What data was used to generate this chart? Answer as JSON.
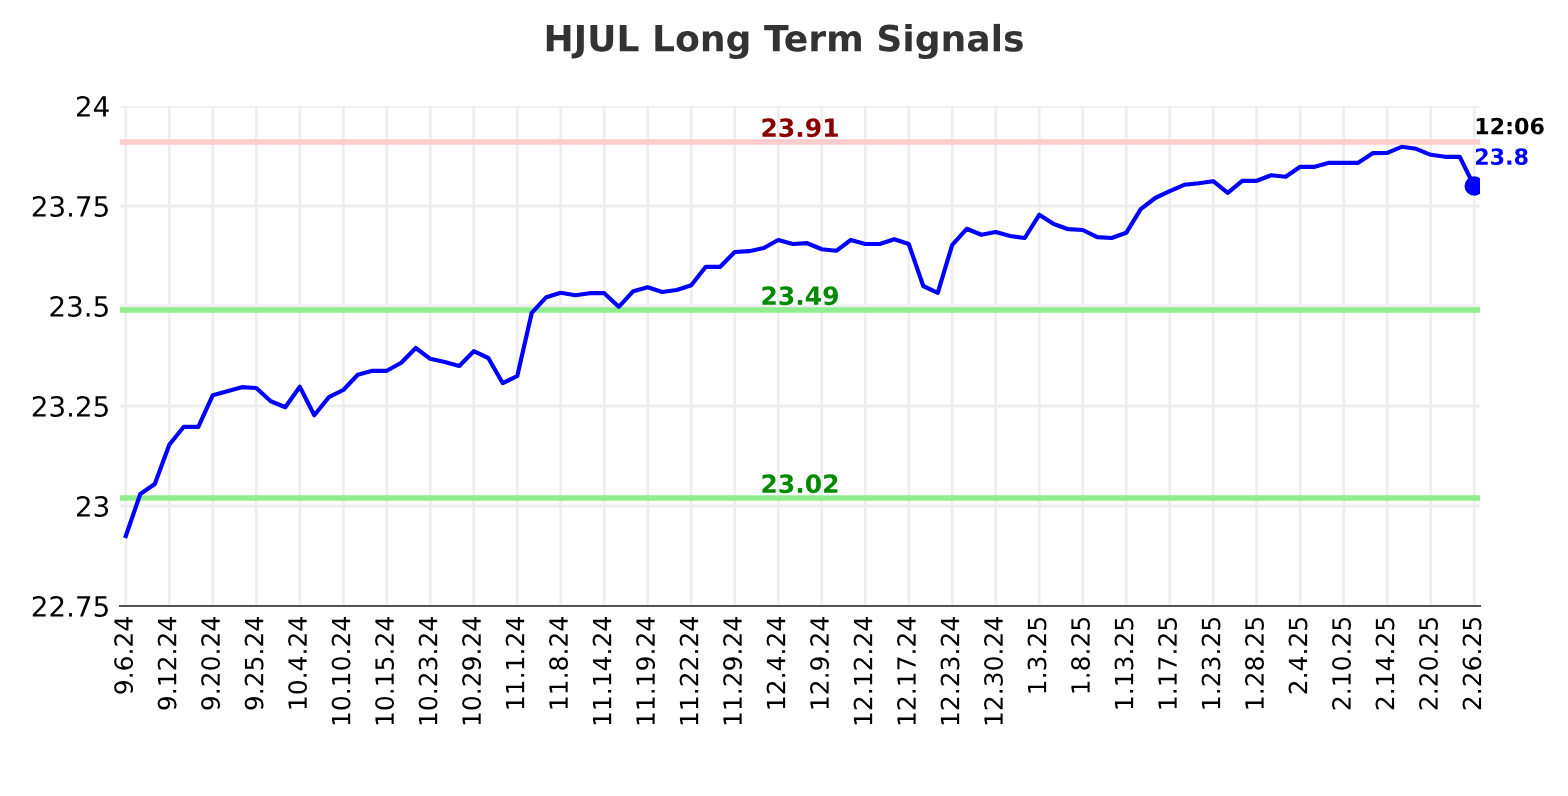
{
  "chart_data": {
    "type": "line",
    "title": "HJUL Long Term Signals",
    "categories": [
      "9.6.24",
      null,
      null,
      "9.12.24",
      null,
      null,
      "9.20.24",
      null,
      null,
      "9.25.24",
      null,
      null,
      "10.4.24",
      null,
      null,
      "10.10.24",
      null,
      null,
      "10.15.24",
      null,
      null,
      "10.23.24",
      null,
      null,
      "10.29.24",
      null,
      null,
      "11.1.24",
      null,
      null,
      "11.8.24",
      null,
      null,
      "11.14.24",
      null,
      null,
      "11.19.24",
      null,
      null,
      "11.22.24",
      null,
      null,
      "11.29.24",
      null,
      null,
      "12.4.24",
      null,
      null,
      "12.9.24",
      null,
      null,
      "12.12.24",
      null,
      null,
      "12.17.24",
      null,
      null,
      "12.23.24",
      null,
      null,
      "12.30.24",
      null,
      null,
      "1.3.25",
      null,
      null,
      "1.8.25",
      null,
      null,
      "1.13.25",
      null,
      null,
      "1.17.25",
      null,
      null,
      "1.23.25",
      null,
      null,
      "1.28.25",
      null,
      null,
      "2.4.25",
      null,
      null,
      "2.10.25",
      null,
      null,
      "2.14.25",
      null,
      null,
      "2.20.25",
      null,
      null,
      "2.26.25"
    ],
    "series": [
      {
        "color": "#0000ff",
        "values": [
          22.925,
          23.03,
          23.055,
          23.153,
          23.198,
          23.198,
          23.277,
          23.287,
          23.297,
          23.295,
          23.262,
          23.247,
          23.298,
          23.227,
          23.272,
          23.29,
          23.328,
          23.338,
          23.338,
          23.358,
          23.395,
          23.368,
          23.36,
          23.35,
          23.387,
          23.37,
          23.307,
          23.325,
          23.483,
          23.522,
          23.533,
          23.527,
          23.532,
          23.532,
          23.498,
          23.537,
          23.547,
          23.535,
          23.54,
          23.552,
          23.598,
          23.598,
          23.635,
          23.637,
          23.645,
          23.665,
          23.655,
          23.657,
          23.642,
          23.638,
          23.665,
          23.655,
          23.655,
          23.667,
          23.655,
          23.55,
          23.533,
          23.653,
          23.693,
          23.678,
          23.685,
          23.675,
          23.67,
          23.728,
          23.705,
          23.692,
          23.69,
          23.672,
          23.67,
          23.683,
          23.742,
          23.77,
          23.787,
          23.803,
          23.807,
          23.812,
          23.783,
          23.813,
          23.813,
          23.827,
          23.823,
          23.848,
          23.848,
          23.858,
          23.858,
          23.858,
          23.882,
          23.883,
          23.898,
          23.893,
          23.878,
          23.873,
          23.873,
          23.8
        ],
        "value_labels": [
          null,
          null,
          null,
          null,
          null,
          null,
          null,
          null,
          null,
          null,
          null,
          null,
          null,
          null,
          null,
          null,
          null,
          null,
          null,
          null,
          null,
          null,
          null,
          null,
          null,
          null,
          null,
          null,
          null,
          null,
          null,
          null,
          null,
          null,
          null,
          null,
          null,
          null,
          null,
          null,
          null,
          null,
          null,
          null,
          null,
          null,
          null,
          null,
          null,
          null,
          null,
          null,
          null,
          null,
          null,
          null,
          null,
          null,
          null,
          null,
          null,
          null,
          null,
          null,
          null,
          null,
          null,
          null,
          null,
          null,
          null,
          null,
          null,
          null,
          null,
          null,
          null,
          null,
          null,
          null,
          null,
          null,
          null,
          null,
          null,
          null,
          null,
          null,
          null,
          null,
          null,
          null,
          null,
          "23.8"
        ]
      }
    ],
    "annotations": [
      {
        "text": "12:06",
        "x": "2.26.25",
        "y": 23.8
      }
    ],
    "ref_lines": [
      {
        "axis": "y",
        "value": 23.91,
        "label": "23.91",
        "color": "#ffcccc"
      },
      {
        "axis": "y",
        "value": 23.49,
        "label": "23.49",
        "color": "#90ee90"
      },
      {
        "axis": "y",
        "value": 23.02,
        "label": "23.02",
        "color": "#90ee90"
      }
    ],
    "ylim": [
      22.75,
      24
    ],
    "yticks": [
      22.75,
      23,
      23.25,
      23.5,
      23.75,
      24
    ],
    "grid": true
  }
}
